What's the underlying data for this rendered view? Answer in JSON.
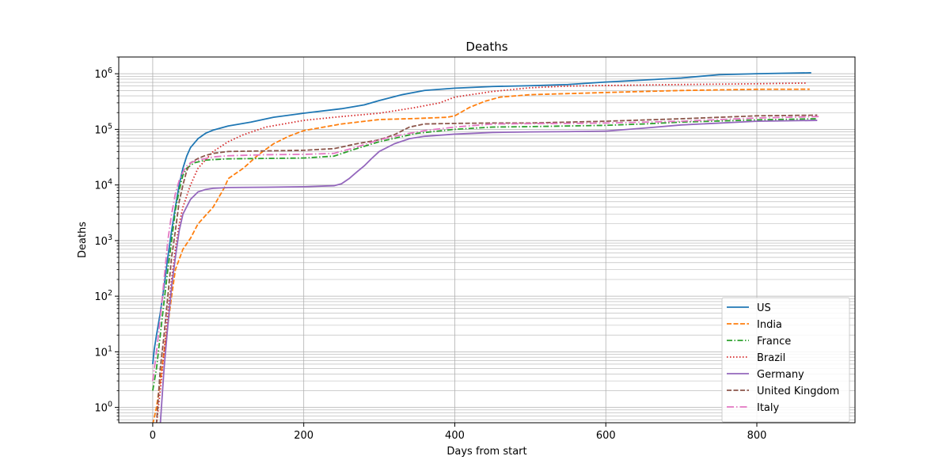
{
  "chart_data": {
    "type": "line",
    "title": "Deaths",
    "xlabel": "Days from start",
    "ylabel": "Deaths",
    "y_scale": "log",
    "xlim": [
      -45,
      930
    ],
    "ylim": [
      0.53,
      2000000
    ],
    "x_ticks": [
      0,
      200,
      400,
      600,
      800
    ],
    "x_tick_labels": [
      "0",
      "200",
      "400",
      "600",
      "800"
    ],
    "y_ticks": [
      1,
      10,
      100,
      1000,
      10000,
      100000,
      1000000
    ],
    "y_tick_labels": [
      {
        "base": "10",
        "exp": "0"
      },
      {
        "base": "10",
        "exp": "1"
      },
      {
        "base": "10",
        "exp": "2"
      },
      {
        "base": "10",
        "exp": "3"
      },
      {
        "base": "10",
        "exp": "4"
      },
      {
        "base": "10",
        "exp": "5"
      },
      {
        "base": "10",
        "exp": "6"
      }
    ],
    "grid": true,
    "grid_minor_y": true,
    "legend_position": "lower-right",
    "series": [
      {
        "name": "US",
        "color": "#1f77b4",
        "dash": "solid",
        "points": [
          [
            0,
            6
          ],
          [
            2,
            11
          ],
          [
            5,
            20
          ],
          [
            10,
            50
          ],
          [
            15,
            150
          ],
          [
            20,
            500
          ],
          [
            25,
            1500
          ],
          [
            30,
            4000
          ],
          [
            35,
            10000
          ],
          [
            40,
            20000
          ],
          [
            45,
            33000
          ],
          [
            50,
            47000
          ],
          [
            60,
            68000
          ],
          [
            70,
            85000
          ],
          [
            80,
            97000
          ],
          [
            100,
            115000
          ],
          [
            130,
            135000
          ],
          [
            160,
            165000
          ],
          [
            200,
            195000
          ],
          [
            250,
            235000
          ],
          [
            280,
            275000
          ],
          [
            300,
            330000
          ],
          [
            330,
            420000
          ],
          [
            360,
            500000
          ],
          [
            400,
            550000
          ],
          [
            450,
            590000
          ],
          [
            500,
            610000
          ],
          [
            550,
            640000
          ],
          [
            600,
            710000
          ],
          [
            650,
            770000
          ],
          [
            700,
            840000
          ],
          [
            750,
            960000
          ],
          [
            800,
            1000000
          ],
          [
            872,
            1040000
          ]
        ]
      },
      {
        "name": "India",
        "color": "#ff7f0e",
        "dash": "dashed",
        "points": [
          [
            0,
            0.5
          ],
          [
            5,
            1
          ],
          [
            10,
            3
          ],
          [
            15,
            10
          ],
          [
            20,
            30
          ],
          [
            25,
            100
          ],
          [
            30,
            300
          ],
          [
            40,
            700
          ],
          [
            50,
            1100
          ],
          [
            60,
            2000
          ],
          [
            80,
            4000
          ],
          [
            95,
            9000
          ],
          [
            100,
            13000
          ],
          [
            120,
            20000
          ],
          [
            140,
            35000
          ],
          [
            160,
            55000
          ],
          [
            180,
            75000
          ],
          [
            200,
            95000
          ],
          [
            250,
            125000
          ],
          [
            300,
            150000
          ],
          [
            350,
            157000
          ],
          [
            390,
            165000
          ],
          [
            400,
            175000
          ],
          [
            420,
            250000
          ],
          [
            440,
            320000
          ],
          [
            460,
            380000
          ],
          [
            500,
            420000
          ],
          [
            600,
            460000
          ],
          [
            700,
            500000
          ],
          [
            800,
            525000
          ],
          [
            870,
            527000
          ]
        ]
      },
      {
        "name": "France",
        "color": "#2ca02c",
        "dash": "dashdot",
        "points": [
          [
            0,
            2
          ],
          [
            5,
            5
          ],
          [
            10,
            20
          ],
          [
            15,
            80
          ],
          [
            20,
            300
          ],
          [
            25,
            1000
          ],
          [
            30,
            3500
          ],
          [
            35,
            8000
          ],
          [
            40,
            15000
          ],
          [
            45,
            20000
          ],
          [
            55,
            25000
          ],
          [
            70,
            28000
          ],
          [
            100,
            29500
          ],
          [
            150,
            30000
          ],
          [
            200,
            30500
          ],
          [
            240,
            33000
          ],
          [
            270,
            45000
          ],
          [
            300,
            60000
          ],
          [
            350,
            85000
          ],
          [
            400,
            100000
          ],
          [
            450,
            110000
          ],
          [
            500,
            112000
          ],
          [
            550,
            115000
          ],
          [
            600,
            118000
          ],
          [
            650,
            125000
          ],
          [
            700,
            135000
          ],
          [
            800,
            148000
          ],
          [
            880,
            155000
          ]
        ]
      },
      {
        "name": "Brazil",
        "color": "#d62728",
        "dash": "dotted",
        "points": [
          [
            5,
            0.5
          ],
          [
            10,
            2
          ],
          [
            15,
            10
          ],
          [
            20,
            50
          ],
          [
            25,
            200
          ],
          [
            30,
            700
          ],
          [
            35,
            2000
          ],
          [
            40,
            4000
          ],
          [
            50,
            10000
          ],
          [
            60,
            20000
          ],
          [
            80,
            40000
          ],
          [
            100,
            60000
          ],
          [
            120,
            80000
          ],
          [
            150,
            110000
          ],
          [
            200,
            145000
          ],
          [
            250,
            170000
          ],
          [
            300,
            195000
          ],
          [
            350,
            250000
          ],
          [
            380,
            300000
          ],
          [
            400,
            380000
          ],
          [
            450,
            480000
          ],
          [
            500,
            560000
          ],
          [
            550,
            600000
          ],
          [
            600,
            615000
          ],
          [
            700,
            640000
          ],
          [
            800,
            660000
          ],
          [
            865,
            680000
          ]
        ]
      },
      {
        "name": "Germany",
        "color": "#9467bd",
        "dash": "solid",
        "points": [
          [
            10,
            0.5
          ],
          [
            15,
            5
          ],
          [
            20,
            30
          ],
          [
            25,
            150
          ],
          [
            30,
            500
          ],
          [
            35,
            1500
          ],
          [
            40,
            3000
          ],
          [
            50,
            5500
          ],
          [
            60,
            7500
          ],
          [
            70,
            8300
          ],
          [
            80,
            8700
          ],
          [
            100,
            9000
          ],
          [
            150,
            9100
          ],
          [
            200,
            9300
          ],
          [
            240,
            9700
          ],
          [
            250,
            10500
          ],
          [
            260,
            13000
          ],
          [
            270,
            17000
          ],
          [
            280,
            22000
          ],
          [
            290,
            30000
          ],
          [
            300,
            40000
          ],
          [
            320,
            55000
          ],
          [
            340,
            68000
          ],
          [
            360,
            75000
          ],
          [
            400,
            82000
          ],
          [
            450,
            88000
          ],
          [
            500,
            90000
          ],
          [
            550,
            91000
          ],
          [
            600,
            93000
          ],
          [
            650,
            105000
          ],
          [
            700,
            120000
          ],
          [
            800,
            140000
          ],
          [
            880,
            145000
          ]
        ]
      },
      {
        "name": "United Kingdom",
        "color": "#8c564b",
        "dash": "dashed",
        "points": [
          [
            5,
            0.5
          ],
          [
            10,
            5
          ],
          [
            15,
            20
          ],
          [
            20,
            100
          ],
          [
            25,
            500
          ],
          [
            30,
            1500
          ],
          [
            35,
            5000
          ],
          [
            40,
            10000
          ],
          [
            45,
            18000
          ],
          [
            50,
            25000
          ],
          [
            60,
            30000
          ],
          [
            70,
            34000
          ],
          [
            80,
            37000
          ],
          [
            100,
            40000
          ],
          [
            150,
            41000
          ],
          [
            200,
            42000
          ],
          [
            240,
            45000
          ],
          [
            270,
            55000
          ],
          [
            300,
            65000
          ],
          [
            320,
            80000
          ],
          [
            340,
            110000
          ],
          [
            360,
            125000
          ],
          [
            400,
            128000
          ],
          [
            450,
            130000
          ],
          [
            500,
            130000
          ],
          [
            550,
            135000
          ],
          [
            600,
            140000
          ],
          [
            700,
            155000
          ],
          [
            800,
            175000
          ],
          [
            880,
            180000
          ]
        ]
      },
      {
        "name": "Italy",
        "color": "#e377c2",
        "dash": "dashdotlong",
        "points": [
          [
            0,
            3
          ],
          [
            5,
            10
          ],
          [
            10,
            40
          ],
          [
            15,
            200
          ],
          [
            20,
            1000
          ],
          [
            25,
            3000
          ],
          [
            30,
            7000
          ],
          [
            35,
            12000
          ],
          [
            40,
            17000
          ],
          [
            45,
            22000
          ],
          [
            50,
            25000
          ],
          [
            60,
            28000
          ],
          [
            80,
            32000
          ],
          [
            100,
            33500
          ],
          [
            150,
            35000
          ],
          [
            200,
            35500
          ],
          [
            240,
            37000
          ],
          [
            270,
            48000
          ],
          [
            300,
            65000
          ],
          [
            330,
            80000
          ],
          [
            360,
            95000
          ],
          [
            400,
            110000
          ],
          [
            450,
            125000
          ],
          [
            500,
            127000
          ],
          [
            550,
            128000
          ],
          [
            600,
            130000
          ],
          [
            700,
            140000
          ],
          [
            800,
            160000
          ],
          [
            885,
            170000
          ]
        ]
      }
    ]
  }
}
